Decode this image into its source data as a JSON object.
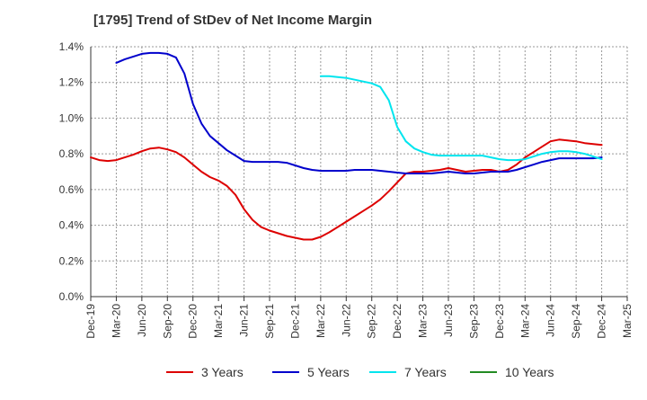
{
  "chart_data": {
    "type": "line",
    "title": "[1795]  Trend of StDev of Net Income Margin",
    "xlabel": "",
    "ylabel": "",
    "ylim": [
      0,
      1.4
    ],
    "grid": true,
    "legend_position": "bottom",
    "x_ticks": [
      "Dec-19",
      "Mar-20",
      "Jun-20",
      "Sep-20",
      "Dec-20",
      "Mar-21",
      "Jun-21",
      "Sep-21",
      "Dec-21",
      "Mar-22",
      "Jun-22",
      "Sep-22",
      "Dec-22",
      "Mar-23",
      "Jun-23",
      "Sep-23",
      "Dec-23",
      "Mar-24",
      "Jun-24",
      "Sep-24",
      "Dec-24",
      "Mar-25"
    ],
    "y_ticks": [
      {
        "value": 0.0,
        "label": "0.0%"
      },
      {
        "value": 0.2,
        "label": "0.2%"
      },
      {
        "value": 0.4,
        "label": "0.4%"
      },
      {
        "value": 0.6,
        "label": "0.6%"
      },
      {
        "value": 0.8,
        "label": "0.8%"
      },
      {
        "value": 1.0,
        "label": "1.0%"
      },
      {
        "value": 1.2,
        "label": "1.2%"
      },
      {
        "value": 1.4,
        "label": "1.4%"
      }
    ],
    "series": [
      {
        "name": "3 Years",
        "color": "#dd0000",
        "x": [
          "Dec-19",
          "Jan-20",
          "Feb-20",
          "Mar-20",
          "Apr-20",
          "May-20",
          "Jun-20",
          "Jul-20",
          "Aug-20",
          "Sep-20",
          "Oct-20",
          "Nov-20",
          "Dec-20",
          "Jan-21",
          "Feb-21",
          "Mar-21",
          "Apr-21",
          "May-21",
          "Jun-21",
          "Jul-21",
          "Aug-21",
          "Sep-21",
          "Oct-21",
          "Nov-21",
          "Dec-21",
          "Jan-22",
          "Feb-22",
          "Mar-22",
          "Apr-22",
          "May-22",
          "Jun-22",
          "Jul-22",
          "Aug-22",
          "Sep-22",
          "Oct-22",
          "Nov-22",
          "Dec-22",
          "Jan-23",
          "Feb-23",
          "Mar-23",
          "Apr-23",
          "May-23",
          "Jun-23",
          "Jul-23",
          "Aug-23",
          "Sep-23",
          "Oct-23",
          "Nov-23",
          "Dec-23",
          "Jan-24",
          "Feb-24",
          "Mar-24",
          "Apr-24",
          "May-24",
          "Jun-24",
          "Jul-24",
          "Aug-24",
          "Sep-24",
          "Oct-24",
          "Nov-24",
          "Dec-24"
        ],
        "values": [
          0.78,
          0.765,
          0.76,
          0.765,
          0.78,
          0.795,
          0.815,
          0.83,
          0.835,
          0.825,
          0.81,
          0.78,
          0.74,
          0.7,
          0.67,
          0.65,
          0.62,
          0.57,
          0.49,
          0.43,
          0.39,
          0.37,
          0.355,
          0.34,
          0.33,
          0.32,
          0.32,
          0.335,
          0.36,
          0.39,
          0.42,
          0.45,
          0.48,
          0.51,
          0.545,
          0.59,
          0.64,
          0.69,
          0.7,
          0.7,
          0.705,
          0.71,
          0.72,
          0.71,
          0.7,
          0.705,
          0.71,
          0.71,
          0.7,
          0.71,
          0.74,
          0.78,
          0.81,
          0.84,
          0.87,
          0.88,
          0.875,
          0.87,
          0.86,
          0.855,
          0.85
        ]
      },
      {
        "name": "5 Years",
        "color": "#0000cc",
        "x": [
          "Mar-20",
          "Apr-20",
          "May-20",
          "Jun-20",
          "Jul-20",
          "Aug-20",
          "Sep-20",
          "Oct-20",
          "Nov-20",
          "Dec-20",
          "Jan-21",
          "Feb-21",
          "Mar-21",
          "Apr-21",
          "May-21",
          "Jun-21",
          "Jul-21",
          "Aug-21",
          "Sep-21",
          "Oct-21",
          "Nov-21",
          "Dec-21",
          "Jan-22",
          "Feb-22",
          "Mar-22",
          "Apr-22",
          "May-22",
          "Jun-22",
          "Jul-22",
          "Aug-22",
          "Sep-22",
          "Oct-22",
          "Nov-22",
          "Dec-22",
          "Jan-23",
          "Feb-23",
          "Mar-23",
          "Apr-23",
          "May-23",
          "Jun-23",
          "Jul-23",
          "Aug-23",
          "Sep-23",
          "Oct-23",
          "Nov-23",
          "Dec-23",
          "Jan-24",
          "Feb-24",
          "Mar-24",
          "Apr-24",
          "May-24",
          "Jun-24",
          "Jul-24",
          "Aug-24",
          "Sep-24",
          "Oct-24",
          "Nov-24",
          "Dec-24"
        ],
        "values": [
          1.31,
          1.33,
          1.345,
          1.36,
          1.365,
          1.365,
          1.36,
          1.34,
          1.25,
          1.08,
          0.97,
          0.9,
          0.86,
          0.82,
          0.79,
          0.76,
          0.755,
          0.755,
          0.755,
          0.755,
          0.75,
          0.735,
          0.72,
          0.71,
          0.705,
          0.705,
          0.705,
          0.705,
          0.71,
          0.71,
          0.71,
          0.705,
          0.7,
          0.695,
          0.69,
          0.69,
          0.69,
          0.69,
          0.695,
          0.7,
          0.695,
          0.69,
          0.69,
          0.695,
          0.7,
          0.7,
          0.7,
          0.71,
          0.725,
          0.74,
          0.755,
          0.765,
          0.775,
          0.775,
          0.775,
          0.775,
          0.775,
          0.78
        ]
      },
      {
        "name": "7 Years",
        "color": "#00e5ee",
        "x": [
          "Mar-22",
          "Apr-22",
          "May-22",
          "Jun-22",
          "Jul-22",
          "Aug-22",
          "Sep-22",
          "Oct-22",
          "Nov-22",
          "Dec-22",
          "Jan-23",
          "Feb-23",
          "Mar-23",
          "Apr-23",
          "May-23",
          "Jun-23",
          "Jul-23",
          "Aug-23",
          "Sep-23",
          "Oct-23",
          "Nov-23",
          "Dec-23",
          "Jan-24",
          "Feb-24",
          "Mar-24",
          "Apr-24",
          "May-24",
          "Jun-24",
          "Jul-24",
          "Aug-24",
          "Sep-24",
          "Oct-24",
          "Nov-24",
          "Dec-24"
        ],
        "values": [
          1.235,
          1.235,
          1.23,
          1.225,
          1.215,
          1.205,
          1.195,
          1.175,
          1.1,
          0.95,
          0.87,
          0.83,
          0.81,
          0.795,
          0.79,
          0.79,
          0.79,
          0.79,
          0.79,
          0.79,
          0.78,
          0.77,
          0.765,
          0.765,
          0.77,
          0.785,
          0.8,
          0.81,
          0.815,
          0.815,
          0.81,
          0.8,
          0.785,
          0.77
        ]
      },
      {
        "name": "10 Years",
        "color": "#228b22",
        "x": [],
        "values": []
      }
    ]
  }
}
